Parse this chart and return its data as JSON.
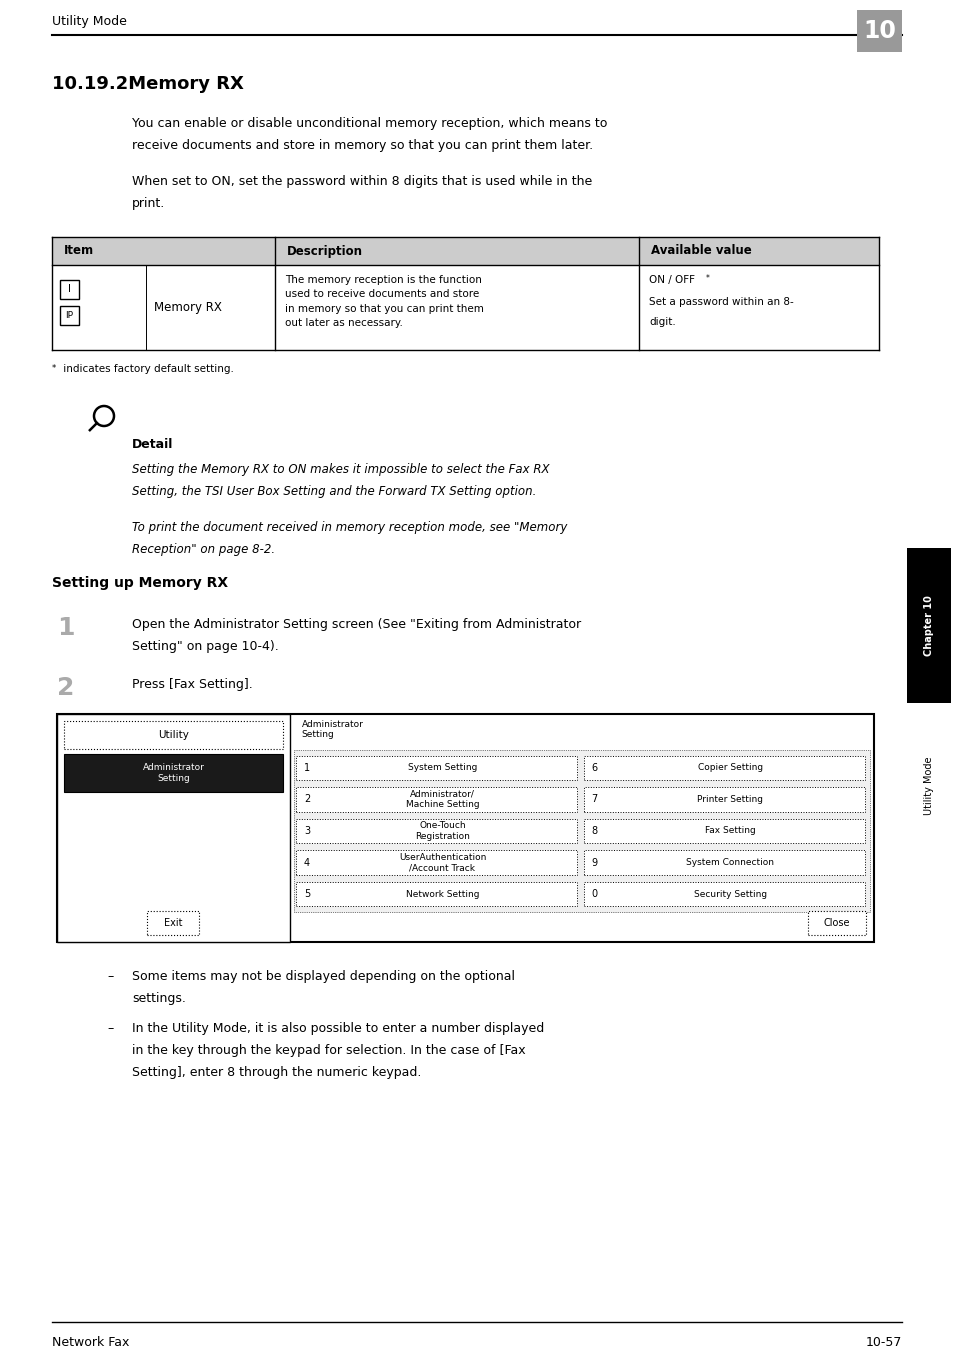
{
  "page_width": 9.54,
  "page_height": 13.52,
  "bg_color": "#ffffff",
  "header_text": "Utility Mode",
  "header_num": "10",
  "chapter_label": "Chapter 10",
  "side_label": "Utility Mode",
  "footer_left": "Network Fax",
  "footer_right": "10-57",
  "title": "10.19.2Memory RX",
  "para1_line1": "You can enable or disable unconditional memory reception, which means to",
  "para1_line2": "receive documents and store in memory so that you can print them later.",
  "para2_line1": "When set to ON, set the password within 8 digits that is used while in the",
  "para2_line2": "print.",
  "table_headers": [
    "Item",
    "Description",
    "Available value"
  ],
  "table_col1_icon1": "I",
  "table_col1_icon2": "IP",
  "table_col1_text": "Memory RX",
  "table_col2_text": "The memory reception is the function\nused to receive documents and store\nin memory so that you can print them\nout later as necessary.",
  "table_col3_line1": "ON / OFF",
  "table_col3_star": "*",
  "table_col3_line2": "Set a password within an 8-",
  "table_col3_line3": "digit.",
  "footnote_star": "*",
  "footnote_text": " indicates factory default setting.",
  "detail_bold": "Detail",
  "detail_italic1_line1": "Setting the Memory RX to ON makes it impossible to select the Fax RX",
  "detail_italic1_line2": "Setting, the TSI User Box Setting and the Forward TX Setting option.",
  "detail_italic2_line1": "To print the document received in memory reception mode, see \"Memory",
  "detail_italic2_line2": "Reception\" on page 8-2.",
  "section_title": "Setting up Memory RX",
  "step1_num": "1",
  "step1_line1": "Open the Administrator Setting screen (See \"Exiting from Administrator",
  "step1_line2": "Setting\" on page 10-4).",
  "step2_num": "2",
  "step2_text": "Press [Fax Setting].",
  "screen_left_top": "Utility",
  "screen_left_bottom": "Administrator\nSetting",
  "screen_title": "Administrator\nSetting",
  "screen_buttons": [
    [
      "1",
      "System Setting",
      "6",
      "Copier Setting"
    ],
    [
      "2",
      "Administrator/\nMachine Setting",
      "7",
      "Printer Setting"
    ],
    [
      "3",
      "One-Touch\nRegistration",
      "8",
      "Fax Setting"
    ],
    [
      "4",
      "UserAuthentication\n/Account Track",
      "9",
      "System Connection"
    ],
    [
      "5",
      "Network Setting",
      "0",
      "Security Setting"
    ]
  ],
  "screen_exit": "Exit",
  "screen_close": "Close",
  "bullet1_line1": "Some items may not be displayed depending on the optional",
  "bullet1_line2": "settings.",
  "bullet2_line1": "In the Utility Mode, it is also possible to enter a number displayed",
  "bullet2_line2": "in the key through the keypad for selection. In the case of [Fax",
  "bullet2_line3": "Setting], enter 8 through the numeric keypad.",
  "table_header_bg": "#cccccc",
  "header_num_bg": "#999999",
  "chapter_tab_bg": "#000000",
  "chapter_tab_fg": "#ffffff"
}
